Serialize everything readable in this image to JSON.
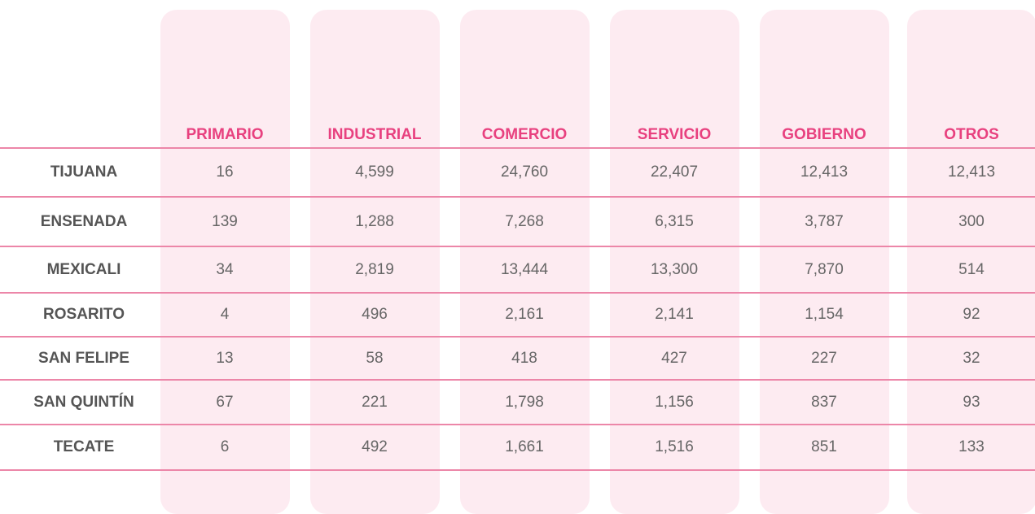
{
  "header": {
    "columns": [
      "PRIMARIO",
      "INDUSTRIAL",
      "COMERCIO",
      "SERVICIO",
      "GOBIERNO",
      "OTROS"
    ]
  },
  "table": {
    "rows": [
      [
        "TIJUANA",
        "16",
        "4,599",
        "24,760",
        "22,407",
        "12,413",
        "12,413"
      ],
      [
        "ENSENADA",
        "139",
        "1,288",
        "7,268",
        "6,315",
        "3,787",
        "300"
      ],
      [
        "MEXICALI",
        "34",
        "2,819",
        "13,444",
        "13,300",
        "7,870",
        "514"
      ],
      [
        "ROSARITO",
        "4",
        "496",
        "2,161",
        "2,141",
        "1,154",
        "92"
      ],
      [
        "SAN FELIPE",
        "13",
        "58",
        "418",
        "427",
        "227",
        "32"
      ],
      [
        "SAN QUINTÍN",
        "67",
        "221",
        "1,798",
        "1,156",
        "837",
        "93"
      ],
      [
        "TECATE",
        "6",
        "492",
        "1,661",
        "1,516",
        "851",
        "133"
      ]
    ]
  }
}
